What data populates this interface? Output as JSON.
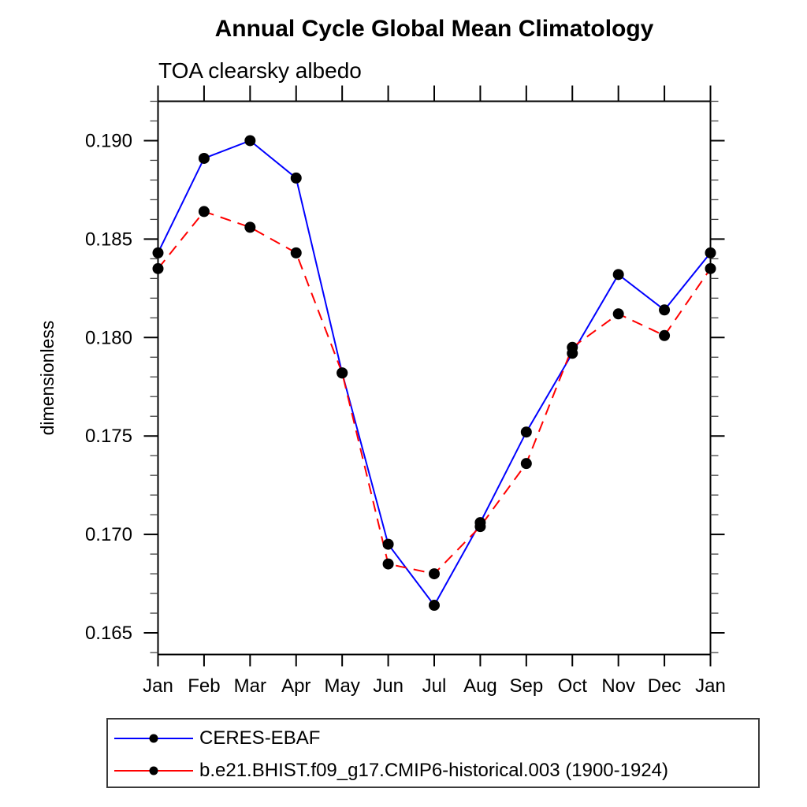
{
  "chart_data": {
    "type": "line",
    "title": "Annual Cycle Global Mean Climatology",
    "subtitle": "TOA clearsky albedo",
    "xlabel": "",
    "ylabel": "dimensionless",
    "categories": [
      "Jan",
      "Feb",
      "Mar",
      "Apr",
      "May",
      "Jun",
      "Jul",
      "Aug",
      "Sep",
      "Oct",
      "Nov",
      "Dec",
      "Jan"
    ],
    "ylim": [
      0.1639,
      0.192
    ],
    "ytick_major": [
      0.165,
      0.17,
      0.175,
      0.18,
      0.185,
      0.19
    ],
    "ytick_major_labels": [
      "0.165",
      "0.170",
      "0.175",
      "0.180",
      "0.185",
      "0.190"
    ],
    "ytick_minor_step": 0.001,
    "grid": false,
    "legend_position": "bottom-left",
    "marker": "filled-circle",
    "marker_color": "#000000",
    "axis_color": "#000000",
    "series": [
      {
        "name": "CERES-EBAF",
        "color": "#0000ff",
        "style": "solid",
        "values": [
          0.1843,
          0.1891,
          0.19,
          0.1881,
          0.1782,
          0.1695,
          0.1664,
          0.1706,
          0.1752,
          0.1792,
          0.1832,
          0.1814,
          0.1843
        ]
      },
      {
        "name": "b.e21.BHIST.f09_g17.CMIP6-historical.003 (1900-1924)",
        "color": "#ff0000",
        "style": "dashed",
        "values": [
          0.1835,
          0.1864,
          0.1856,
          0.1843,
          0.1782,
          0.1685,
          0.168,
          0.1704,
          0.1736,
          0.1795,
          0.1812,
          0.1801,
          0.1835
        ]
      }
    ]
  }
}
